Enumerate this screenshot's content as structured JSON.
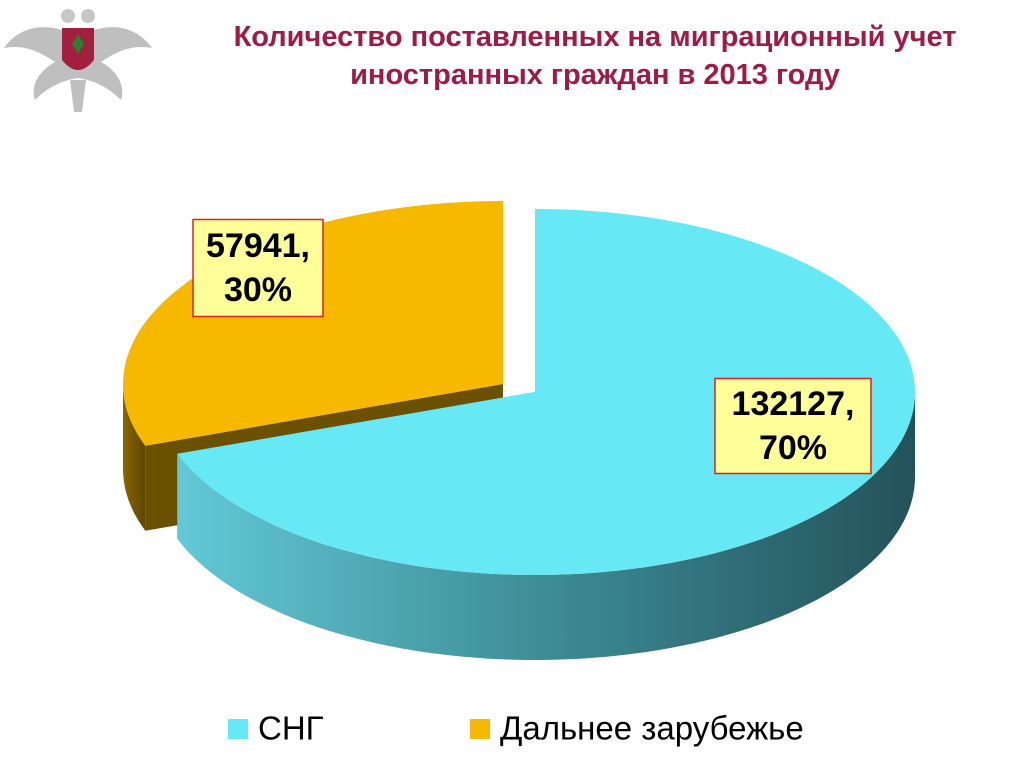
{
  "chart_data": {
    "type": "pie",
    "title": "Количество поставленных на миграционный учет иностранных граждан в 2013 году",
    "categories": [
      "СНГ",
      "Дальнее зарубежье"
    ],
    "values": [
      132127,
      57941
    ],
    "value_labels": [
      "132127,",
      "57941,"
    ],
    "percent_labels": [
      "70%",
      "30%"
    ],
    "colors": [
      "#66e8f5",
      "#f7b800"
    ],
    "legend": "bottom"
  }
}
